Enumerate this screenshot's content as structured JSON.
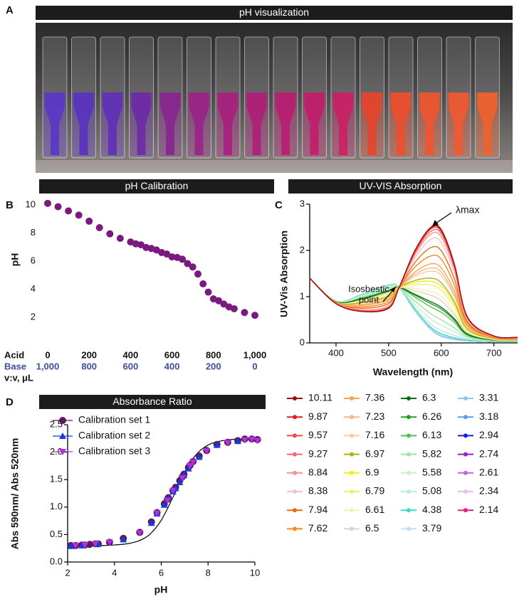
{
  "panel_labels": [
    "A",
    "B",
    "C",
    "D"
  ],
  "photo_title": "pH visualization",
  "chart_data": [
    {
      "type": "scatter",
      "title": "pH Calibration",
      "ylabel": "pH",
      "x": [
        0,
        50,
        100,
        150,
        200,
        250,
        300,
        350,
        400,
        425,
        450,
        475,
        500,
        525,
        550,
        575,
        600,
        625,
        650,
        675,
        700,
        725,
        750,
        775,
        800,
        825,
        850,
        875,
        900,
        950,
        1000
      ],
      "values": [
        10.11,
        9.87,
        9.57,
        9.27,
        8.84,
        8.38,
        7.94,
        7.62,
        7.36,
        7.23,
        7.16,
        6.97,
        6.9,
        6.79,
        6.61,
        6.5,
        6.3,
        6.26,
        6.13,
        5.82,
        5.58,
        5.08,
        4.38,
        3.79,
        3.31,
        3.18,
        2.94,
        2.74,
        2.61,
        2.34,
        2.14
      ],
      "color": "#7a1a80",
      "xlim": [
        0,
        1000
      ],
      "ylim": [
        2,
        10
      ],
      "yticks": [
        2,
        4,
        6,
        8,
        10
      ],
      "xticks": [
        0,
        200,
        400,
        600,
        800,
        {
          "value": 1000,
          "label": "1,000"
        }
      ],
      "x_row_names": [
        "Acid",
        "Base"
      ],
      "base_tick_labels": [
        "1,000",
        "800",
        "600",
        "400",
        "200",
        "0"
      ],
      "x_unit_label": "v:v, μL"
    },
    {
      "type": "line",
      "title": "UV-VIS Absorption",
      "xlabel": "Wavelength (nm)",
      "ylabel": "UV-Vis Absorption",
      "x": [
        350,
        400,
        450,
        500,
        520,
        550,
        580,
        600,
        625,
        650,
        700,
        745
      ],
      "xlim": [
        350,
        745
      ],
      "ylim": [
        0,
        3
      ],
      "xticks": [
        400,
        500,
        600,
        700
      ],
      "yticks": [
        0,
        1,
        2,
        3
      ],
      "annotations": [
        [
          "Isosbestic",
          "point"
        ],
        [
          "λmax"
        ]
      ],
      "legend": "below",
      "series": [
        {
          "name": "10.11",
          "color": "#9b1111",
          "values": [
            1.4,
            0.85,
            0.68,
            0.75,
            1.2,
            2.0,
            2.5,
            2.45,
            1.7,
            0.55,
            0.15,
            0.12
          ]
        },
        {
          "name": "9.87",
          "color": "#e11f1f",
          "values": [
            1.4,
            0.85,
            0.68,
            0.76,
            1.2,
            1.99,
            2.48,
            2.43,
            1.68,
            0.55,
            0.15,
            0.12
          ]
        },
        {
          "name": "9.57",
          "color": "#f04848",
          "values": [
            1.4,
            0.85,
            0.69,
            0.76,
            1.2,
            1.97,
            2.46,
            2.4,
            1.67,
            0.54,
            0.15,
            0.12
          ]
        },
        {
          "name": "9.27",
          "color": "#f26b6b",
          "values": [
            1.4,
            0.85,
            0.69,
            0.77,
            1.2,
            1.95,
            2.41,
            2.36,
            1.64,
            0.53,
            0.15,
            0.12
          ]
        },
        {
          "name": "8.84",
          "color": "#f39494",
          "values": [
            1.4,
            0.85,
            0.71,
            0.79,
            1.2,
            1.91,
            2.35,
            2.29,
            1.59,
            0.52,
            0.14,
            0.11
          ]
        },
        {
          "name": "8.38",
          "color": "#f6c0c8",
          "values": [
            1.4,
            0.86,
            0.72,
            0.81,
            1.2,
            1.84,
            2.24,
            2.17,
            1.51,
            0.49,
            0.14,
            0.11
          ]
        },
        {
          "name": "7.94",
          "color": "#ee6a12",
          "values": [
            1.4,
            0.86,
            0.75,
            0.85,
            1.2,
            1.74,
            2.06,
            1.99,
            1.38,
            0.45,
            0.13,
            0.1
          ]
        },
        {
          "name": "7.62",
          "color": "#f28a24",
          "values": [
            1.4,
            0.86,
            0.78,
            0.89,
            1.2,
            1.64,
            1.88,
            1.81,
            1.25,
            0.41,
            0.12,
            0.09
          ]
        },
        {
          "name": "7.36",
          "color": "#f5a257",
          "values": [
            1.4,
            0.87,
            0.81,
            0.93,
            1.2,
            1.53,
            1.71,
            1.62,
            1.12,
            0.37,
            0.11,
            0.08
          ]
        },
        {
          "name": "7.23",
          "color": "#f7b882",
          "values": [
            1.4,
            0.87,
            0.83,
            0.95,
            1.2,
            1.48,
            1.62,
            1.53,
            1.05,
            0.35,
            0.1,
            0.08
          ]
        },
        {
          "name": "7.16",
          "color": "#f8cca6",
          "values": [
            1.4,
            0.87,
            0.84,
            0.97,
            1.2,
            1.44,
            1.55,
            1.46,
            1.0,
            0.34,
            0.1,
            0.08
          ]
        },
        {
          "name": "6.97",
          "color": "#b5ad1e",
          "values": [
            1.4,
            0.88,
            0.87,
            1.0,
            1.2,
            1.35,
            1.4,
            1.3,
            0.89,
            0.3,
            0.09,
            0.07
          ]
        },
        {
          "name": "6.9",
          "color": "#eeee1c",
          "values": [
            1.4,
            0.88,
            0.88,
            1.02,
            1.2,
            1.31,
            1.33,
            1.23,
            0.84,
            0.29,
            0.09,
            0.07
          ]
        },
        {
          "name": "6.79",
          "color": "#f1f06e",
          "values": [
            1.4,
            0.88,
            0.89,
            1.04,
            1.2,
            1.26,
            1.25,
            1.14,
            0.78,
            0.27,
            0.08,
            0.06
          ]
        },
        {
          "name": "6.61",
          "color": "#f4f0b4",
          "values": [
            1.4,
            0.88,
            0.91,
            1.07,
            1.2,
            1.18,
            1.11,
            1.0,
            0.68,
            0.24,
            0.07,
            0.06
          ]
        },
        {
          "name": "6.5",
          "color": "#d6d6c2",
          "values": [
            1.4,
            0.88,
            0.93,
            1.09,
            1.2,
            1.13,
            1.03,
            0.91,
            0.61,
            0.22,
            0.07,
            0.05
          ]
        },
        {
          "name": "6.3",
          "color": "#146a14",
          "values": [
            1.4,
            0.89,
            0.95,
            1.12,
            1.2,
            1.05,
            0.89,
            0.77,
            0.52,
            0.19,
            0.06,
            0.05
          ]
        },
        {
          "name": "6.26",
          "color": "#22a022",
          "values": [
            1.4,
            0.89,
            0.96,
            1.13,
            1.2,
            1.03,
            0.85,
            0.73,
            0.49,
            0.18,
            0.06,
            0.05
          ]
        },
        {
          "name": "6.13",
          "color": "#4fc04f",
          "values": [
            1.4,
            0.89,
            0.97,
            1.14,
            1.2,
            0.99,
            0.78,
            0.66,
            0.44,
            0.16,
            0.06,
            0.04
          ]
        },
        {
          "name": "5.82",
          "color": "#a3e0a3",
          "values": [
            1.4,
            0.89,
            0.99,
            1.18,
            1.2,
            0.9,
            0.63,
            0.5,
            0.32,
            0.13,
            0.05,
            0.04
          ]
        },
        {
          "name": "5.58",
          "color": "#c6f2c6",
          "values": [
            1.4,
            0.9,
            1.01,
            1.2,
            1.2,
            0.83,
            0.52,
            0.38,
            0.24,
            0.1,
            0.04,
            0.03
          ]
        },
        {
          "name": "5.08",
          "color": "#b4efe0",
          "values": [
            1.4,
            0.9,
            1.03,
            1.23,
            1.2,
            0.77,
            0.41,
            0.27,
            0.16,
            0.08,
            0.04,
            0.03
          ]
        },
        {
          "name": "4.38",
          "color": "#3fdcc0",
          "values": [
            1.4,
            0.9,
            1.04,
            1.24,
            1.2,
            0.73,
            0.34,
            0.2,
            0.11,
            0.06,
            0.03,
            0.02
          ]
        },
        {
          "name": "3.79",
          "color": "#c4e0f2",
          "values": [
            1.4,
            0.9,
            1.05,
            1.25,
            1.2,
            0.71,
            0.32,
            0.17,
            0.1,
            0.06,
            0.03,
            0.02
          ]
        },
        {
          "name": "3.31",
          "color": "#92c6f0",
          "values": [
            1.4,
            0.9,
            1.05,
            1.25,
            1.2,
            0.7,
            0.3,
            0.15,
            0.08,
            0.05,
            0.03,
            0.02
          ]
        },
        {
          "name": "3.18",
          "color": "#5a9ef0",
          "values": [
            1.4,
            0.9,
            1.05,
            1.25,
            1.2,
            0.7,
            0.3,
            0.15,
            0.08,
            0.05,
            0.03,
            0.02
          ]
        },
        {
          "name": "2.94",
          "color": "#1424cc",
          "values": [
            1.4,
            0.9,
            1.05,
            1.25,
            1.2,
            0.7,
            0.3,
            0.15,
            0.08,
            0.05,
            0.03,
            0.02
          ]
        },
        {
          "name": "2.74",
          "color": "#8e24c4",
          "values": [
            1.4,
            0.9,
            1.05,
            1.25,
            1.2,
            0.7,
            0.3,
            0.15,
            0.08,
            0.05,
            0.03,
            0.02
          ]
        },
        {
          "name": "2.61",
          "color": "#c464e0",
          "values": [
            1.4,
            0.9,
            1.05,
            1.25,
            1.2,
            0.7,
            0.3,
            0.15,
            0.08,
            0.05,
            0.03,
            0.02
          ]
        },
        {
          "name": "2.34",
          "color": "#e9bde9",
          "values": [
            1.4,
            0.9,
            1.05,
            1.25,
            1.2,
            0.7,
            0.3,
            0.15,
            0.08,
            0.05,
            0.03,
            0.02
          ]
        },
        {
          "name": "2.14",
          "color": "#e0207e",
          "values": [
            1.4,
            0.9,
            1.05,
            1.25,
            1.2,
            0.7,
            0.3,
            0.15,
            0.08,
            0.05,
            0.03,
            0.02
          ]
        }
      ]
    },
    {
      "type": "scatter",
      "title": "Absorbance Ratio",
      "xlabel": "pH",
      "ylabel": "Abs 590nm/ Abs 520nm",
      "xlim": [
        2,
        10
      ],
      "ylim": [
        0,
        2.5
      ],
      "xticks": [
        2,
        4,
        6,
        8,
        10
      ],
      "yticks": [
        {
          "value": 0,
          "label": "0.0"
        },
        0.5,
        {
          "value": 1,
          "label": "1.0"
        },
        1.5,
        {
          "value": 2,
          "label": "2.0"
        },
        2.5
      ],
      "legend": "upper-left",
      "series": [
        {
          "name": "Calibration set 1",
          "color": "#5a1a5a",
          "marker": "circle",
          "x": [
            2.14,
            2.34,
            2.61,
            2.74,
            2.94,
            3.18,
            3.31,
            3.79,
            4.38,
            5.08,
            5.58,
            5.82,
            6.13,
            6.26,
            6.3,
            6.5,
            6.61,
            6.79,
            6.9,
            6.97,
            7.16,
            7.23,
            7.36,
            7.62,
            7.94,
            8.38,
            8.84,
            9.27,
            9.57,
            9.87,
            10.11
          ],
          "values": [
            0.3,
            0.3,
            0.31,
            0.31,
            0.32,
            0.33,
            0.33,
            0.36,
            0.43,
            0.54,
            0.73,
            0.9,
            1.06,
            1.14,
            1.17,
            1.3,
            1.36,
            1.48,
            1.55,
            1.6,
            1.72,
            1.76,
            1.83,
            1.93,
            2.03,
            2.14,
            2.18,
            2.21,
            2.24,
            2.24,
            2.23
          ]
        },
        {
          "name": "Calibration set 2",
          "color": "#1a3ae0",
          "marker": "triangle-up",
          "x": [
            2.14,
            2.61,
            3.31,
            4.38,
            5.58,
            5.82,
            6.13,
            6.3,
            6.5,
            6.61,
            6.79,
            6.97,
            7.16,
            7.62,
            8.38,
            9.27
          ],
          "values": [
            0.29,
            0.3,
            0.33,
            0.41,
            0.71,
            0.88,
            1.04,
            1.16,
            1.28,
            1.34,
            1.45,
            1.58,
            1.7,
            1.91,
            2.13,
            2.2
          ]
        },
        {
          "name": "Calibration set 3",
          "color": "#b030e0",
          "marker": "triangle-down",
          "x": [
            2.34,
            2.74,
            3.18,
            3.79,
            5.08,
            5.82,
            6.26,
            6.5,
            6.9,
            7.23,
            7.36,
            7.94,
            8.84,
            9.57,
            9.87,
            10.11
          ],
          "values": [
            0.3,
            0.31,
            0.33,
            0.36,
            0.53,
            0.89,
            1.12,
            1.3,
            1.53,
            1.75,
            1.82,
            2.02,
            2.17,
            2.22,
            2.23,
            2.21
          ]
        }
      ],
      "fit": {
        "color": "#000000",
        "x": [
          2,
          2.5,
          3,
          3.5,
          4,
          4.5,
          5,
          5.5,
          6,
          6.5,
          7,
          7.5,
          8,
          8.5,
          9,
          9.5,
          10
        ],
        "values": [
          0.3,
          0.3,
          0.3,
          0.3,
          0.31,
          0.33,
          0.38,
          0.5,
          0.76,
          1.18,
          1.64,
          1.96,
          2.13,
          2.2,
          2.23,
          2.24,
          2.25
        ]
      }
    }
  ]
}
